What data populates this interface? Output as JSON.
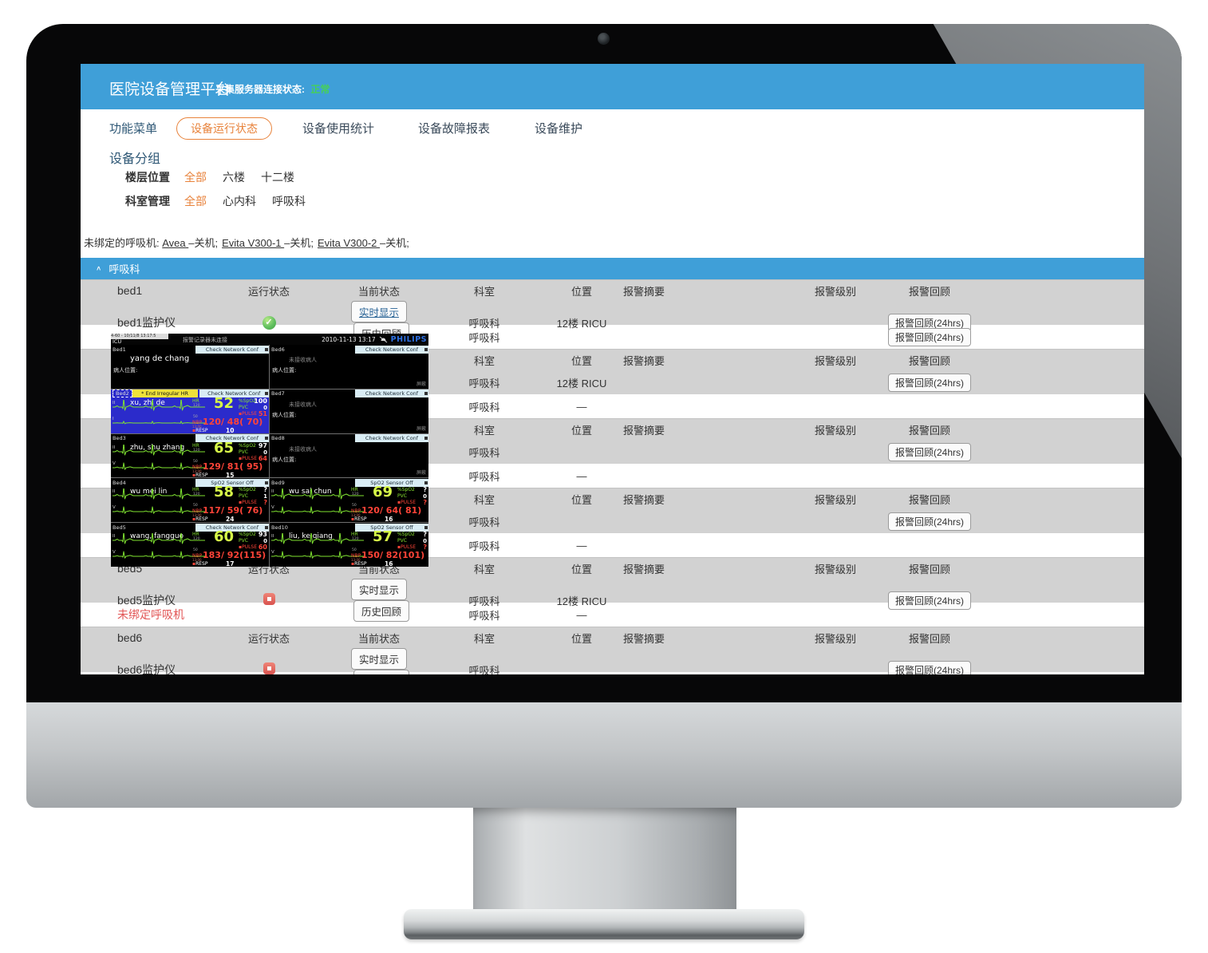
{
  "header": {
    "title": "医院设备管理平台",
    "server_status_label": "采集服务器连接状态:",
    "server_status_value": "正常",
    "status_color": "#46d058",
    "bar_color": "#3f9fd8"
  },
  "nav": {
    "menu_label": "功能菜单",
    "tabs": [
      {
        "label": "设备运行状态",
        "active": true
      },
      {
        "label": "设备使用统计",
        "active": false
      },
      {
        "label": "设备故障报表",
        "active": false
      },
      {
        "label": "设备维护",
        "active": false
      }
    ],
    "accent_color": "#e8833c"
  },
  "filters": {
    "group_title": "设备分组",
    "rows": [
      {
        "label": "楼层位置",
        "options": [
          {
            "label": "全部",
            "selected": true
          },
          {
            "label": "六楼",
            "selected": false
          },
          {
            "label": "十二楼",
            "selected": false
          }
        ]
      },
      {
        "label": "科室管理",
        "options": [
          {
            "label": "全部",
            "selected": true
          },
          {
            "label": "心内科",
            "selected": false
          },
          {
            "label": "呼吸科",
            "selected": false
          }
        ]
      }
    ]
  },
  "unbound_line": {
    "prefix": "未绑定的呼吸机:",
    "items": [
      {
        "name": "Avea",
        "status": "–关机;"
      },
      {
        "name": "Evita V300-1",
        "status": "–关机;"
      },
      {
        "name": "Evita V300-2",
        "status": "–关机;"
      }
    ]
  },
  "section": {
    "title": "呼吸科",
    "collapse_icon": "∧"
  },
  "table": {
    "headers": {
      "run": "运行状态",
      "current": "当前状态",
      "dept": "科室",
      "loc": "位置",
      "summary": "报警摘要",
      "level": "报警级别",
      "review": "报警回顾"
    },
    "realtime_label": "实时显示",
    "history_label": "历史回顾",
    "review_label": "报警回顾(24hrs)",
    "rows": [
      {
        "type": "head",
        "name": "bed1"
      },
      {
        "type": "dev",
        "shade": "gray",
        "name": "bed1监护仪",
        "icon": "check",
        "buttons": true,
        "realtime_active": true,
        "dept": "呼吸科",
        "loc": "12楼 RICU",
        "review": true
      },
      {
        "type": "dev",
        "shade": "white",
        "name": "",
        "icon": "",
        "buttons": false,
        "dept": "呼吸科",
        "loc": "",
        "review": true
      },
      {
        "type": "head",
        "name": ""
      },
      {
        "type": "dev",
        "shade": "gray",
        "name": "",
        "icon": "",
        "buttons": false,
        "dept": "呼吸科",
        "loc": "12楼 RICU",
        "review": true
      },
      {
        "type": "dev",
        "shade": "white",
        "name": "",
        "icon": "",
        "buttons": false,
        "dept": "呼吸科",
        "loc": "—",
        "review": false
      },
      {
        "type": "head",
        "name": ""
      },
      {
        "type": "dev",
        "shade": "gray",
        "name": "",
        "icon": "",
        "buttons": false,
        "dept": "呼吸科",
        "loc": "",
        "review": true
      },
      {
        "type": "dev",
        "shade": "white",
        "name": "",
        "icon": "",
        "buttons": false,
        "dept": "呼吸科",
        "loc": "—",
        "review": false
      },
      {
        "type": "head",
        "name": ""
      },
      {
        "type": "dev",
        "shade": "gray",
        "name": "",
        "icon": "",
        "buttons": false,
        "dept": "呼吸科",
        "loc": "",
        "review": true
      },
      {
        "type": "dev",
        "shade": "white",
        "name": "",
        "icon": "",
        "buttons": false,
        "dept": "呼吸科",
        "loc": "—",
        "review": false
      },
      {
        "type": "head",
        "name": "bed5"
      },
      {
        "type": "dev",
        "shade": "gray",
        "name": "bed5监护仪",
        "icon": "stop",
        "buttons": true,
        "realtime_active": false,
        "dept": "呼吸科",
        "loc": "12楼 RICU",
        "review": true
      },
      {
        "type": "dev",
        "shade": "white",
        "name": "未绑定呼吸机",
        "name_red": true,
        "icon": "",
        "buttons": false,
        "dept": "呼吸科",
        "loc": "—",
        "review": false
      },
      {
        "type": "head",
        "name": "bed6"
      },
      {
        "type": "dev",
        "shade": "gray",
        "name": "bed6监护仪",
        "icon": "stop",
        "buttons": true,
        "realtime_active": false,
        "dept": "呼吸科",
        "loc": "",
        "review": true
      }
    ]
  },
  "popup": {
    "titlebar": {
      "strip": "4-60 - 10/11/8 13:17:5",
      "unit": "ICU",
      "center": "报警记录器未连接",
      "datetime": "2010-11-13 13:17",
      "brand": "PHILIPS"
    },
    "labels": {
      "hr": "HR",
      "spo2": "%SpO2",
      "pvc": "PVC",
      "pulse": "PULSE",
      "nbp": "NBP",
      "nbp_sub": "13:00",
      "resp": "RESP",
      "unreceived": "未接收病人",
      "loc": "病人位置:",
      "corner": "屏蔽"
    },
    "beds": [
      {
        "id": "Bed1",
        "alarm": "Check Network Conf",
        "patient": "yang de chang",
        "show_loc": true
      },
      {
        "id": "Bed6",
        "alarm": "Check Network Conf",
        "unreceived": true,
        "show_loc": true
      },
      {
        "id": "Bed2",
        "alarm": "Check Network Conf",
        "alert": "* End Irregular HR",
        "selected": true,
        "patient": "xu, zhi de",
        "leads": [
          "II",
          "I"
        ],
        "hr": "52",
        "hr_hi": "120",
        "hr_lo": "50",
        "spo2": "100",
        "pvc": "0",
        "pulse": "51",
        "nbp": "120/ 48( 70)",
        "resp": "10"
      },
      {
        "id": "Bed7",
        "alarm": "Check Network Conf",
        "unreceived": true,
        "show_loc": true
      },
      {
        "id": "Bed3",
        "alarm": "Check Network Conf",
        "patient": "zhu, shu zhang",
        "leads": [
          "II",
          "V"
        ],
        "hr": "65",
        "hr_hi": "120",
        "hr_lo": "50",
        "spo2": "97",
        "pvc": "0",
        "pulse": "64",
        "nbp": "129/ 81( 95)",
        "resp": "15"
      },
      {
        "id": "Bed8",
        "alarm": "Check Network Conf",
        "unreceived": true,
        "show_loc": true
      },
      {
        "id": "Bed4",
        "alarm": "SpO2  Sensor Off",
        "patient": "wu mei lin",
        "leads": [
          "II",
          "V"
        ],
        "hr": "58",
        "hr_hi": "120",
        "hr_lo": "50",
        "spo2": "?",
        "pvc": "1",
        "pulse": "?",
        "nbp": "117/ 59( 76)",
        "resp": "24"
      },
      {
        "id": "Bed9",
        "alarm": "SpO2  Sensor Off",
        "patient": "wu sai chun",
        "leads": [
          "II",
          "V"
        ],
        "hr": "69",
        "hr_hi": "120",
        "hr_lo": "50",
        "spo2": "?",
        "pvc": "0",
        "pulse": "?",
        "nbp": "120/ 64( 81)",
        "resp": "16"
      },
      {
        "id": "Bed5",
        "alarm": "Check Network Conf",
        "patient": "wang, fangguo",
        "leads": [
          "II",
          "V"
        ],
        "hr": "60",
        "hr_hi": "120",
        "hr_lo": "50",
        "spo2": "93",
        "pvc": "0",
        "pulse": "60",
        "nbp": "183/ 92(115)",
        "resp": "17"
      },
      {
        "id": "Bed10",
        "alarm": "SpO2  Sensor Off",
        "patient": "liu, ke qiang",
        "leads": [
          "II",
          "V"
        ],
        "hr": "57",
        "hr_hi": "120",
        "hr_lo": "50",
        "spo2": "?",
        "pvc": "0",
        "pulse": "?",
        "nbp": "150/ 82(101)",
        "resp": "16"
      }
    ]
  }
}
